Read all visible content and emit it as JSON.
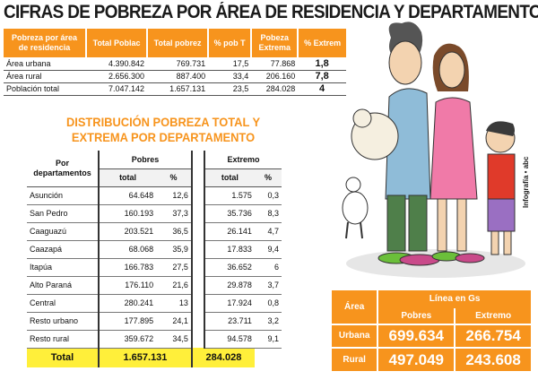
{
  "title": "CIFRAS DE POBREZA POR ÁREA DE RESIDENCIA Y DEPARTAMENTOS",
  "area_table": {
    "headers": [
      "Pobreza por área de residencia",
      "Total Poblac",
      "Total pobrez",
      "% pob T",
      "Pobeza Extrema",
      "% Extrem"
    ],
    "rows": [
      [
        "Área urbana",
        "4.390.842",
        "769.731",
        "17,5",
        "77.868",
        "1,8"
      ],
      [
        "Área rural",
        "2.656.300",
        "887.400",
        "33,4",
        "206.160",
        "7,8"
      ],
      [
        "Población total",
        "7.047.142",
        "1.657.131",
        "23,5",
        "284.028",
        "4"
      ]
    ]
  },
  "subtitle_line1": "DISTRIBUCIÓN POBREZA TOTAL Y",
  "subtitle_line2": "EXTREMA POR DEPARTAMENTO",
  "dept_table": {
    "col_group": "Por departamentos",
    "pobres": "Pobres",
    "extremo": "Extremo",
    "total_label": "total",
    "pct_label": "%",
    "rows": [
      [
        "Asunción",
        "64.648",
        "12,6",
        "1.575",
        "0,3"
      ],
      [
        "San Pedro",
        "160.193",
        "37,3",
        "35.736",
        "8,3"
      ],
      [
        "Caaguazú",
        "203.521",
        "36,5",
        "26.141",
        "4,7"
      ],
      [
        "Caazapá",
        "68.068",
        "35,9",
        "17.833",
        "9,4"
      ],
      [
        "Itapúa",
        "166.783",
        "27,5",
        "36.652",
        "6"
      ],
      [
        "Alto Paraná",
        "176.110",
        "21,6",
        "29.878",
        "3,7"
      ],
      [
        "Central",
        "280.241",
        "13",
        "17.924",
        "0,8"
      ],
      [
        "Resto urbano",
        "177.895",
        "24,1",
        "23.711",
        "3,2"
      ],
      [
        "Resto rural",
        "359.672",
        "34,5",
        "94.578",
        "9,1"
      ]
    ],
    "total_row": [
      "Total",
      "1.657.131",
      "284.028"
    ]
  },
  "linea_table": {
    "area": "Área",
    "linea": "Línea en Gs",
    "pobres": "Pobres",
    "extremo": "Extremo",
    "rows": [
      [
        "Urbana",
        "699.634",
        "266.754"
      ],
      [
        "Rural",
        "497.049",
        "243.608"
      ]
    ]
  },
  "credit": "Infografía • abc"
}
